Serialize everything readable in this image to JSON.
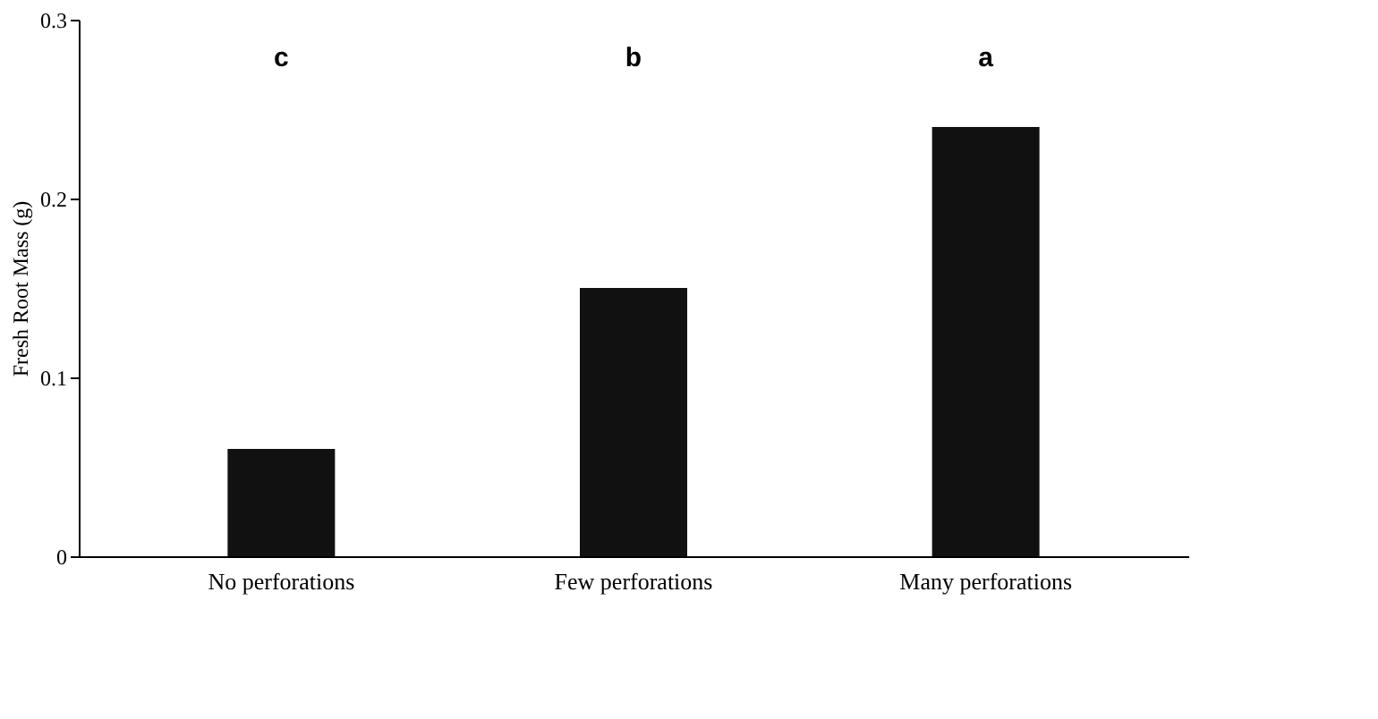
{
  "chart_data": {
    "type": "bar",
    "ylabel": "Fresh Root Mass (g)",
    "categories": [
      "No perforations",
      "Few perforations",
      "Many perforations"
    ],
    "values": [
      0.06,
      0.15,
      0.24
    ],
    "color": "#111111",
    "ylim": [
      0,
      0.3
    ],
    "yticks": [
      0,
      0.1,
      0.2,
      0.3
    ],
    "grid": false,
    "annotations": [
      "c",
      "b",
      "a"
    ]
  }
}
